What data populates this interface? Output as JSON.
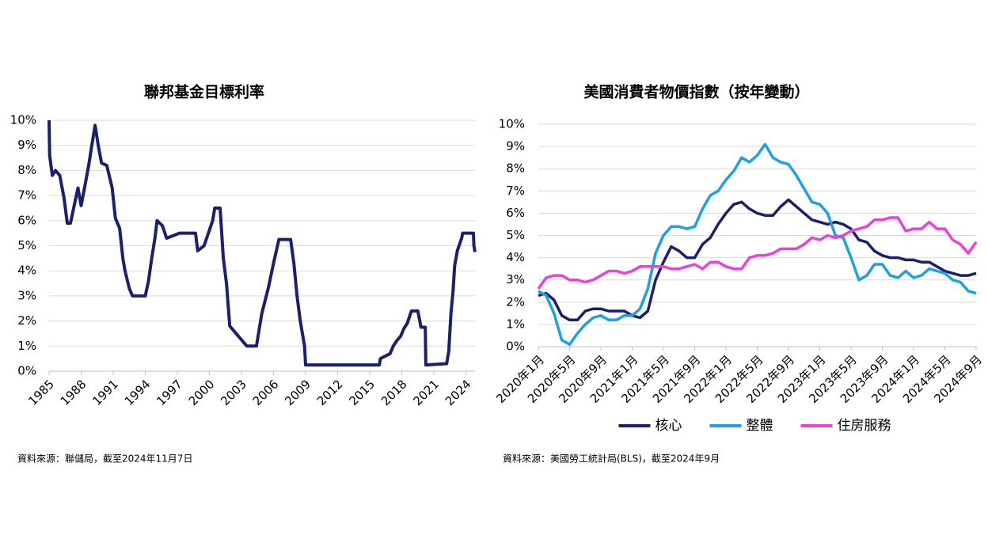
{
  "chart_data": [
    {
      "type": "line",
      "title": "聯邦基金目標利率",
      "source": "資料來源：聯儲局，截至2024年11月7日",
      "color": "#1a1f6e",
      "x": [
        1985.0,
        1985.05,
        1985.3,
        1985.6,
        1986.0,
        1986.4,
        1986.7,
        1987.0,
        1987.4,
        1987.7,
        1988.0,
        1988.4,
        1988.7,
        1989.0,
        1989.3,
        1989.6,
        1989.9,
        1990.4,
        1990.9,
        1991.2,
        1991.6,
        1991.9,
        1992.1,
        1992.5,
        1992.8,
        1994.0,
        1994.3,
        1994.6,
        1994.9,
        1995.1,
        1995.6,
        1996.0,
        1997.2,
        1998.7,
        1998.9,
        1999.5,
        1999.9,
        2000.3,
        2000.5,
        2001.0,
        2001.3,
        2001.6,
        2001.9,
        2002.9,
        2003.5,
        2004.4,
        2004.9,
        2005.5,
        2006.0,
        2006.5,
        2007.6,
        2007.9,
        2008.2,
        2008.5,
        2008.9,
        2009.0,
        2015.9,
        2016.0,
        2016.9,
        2017.2,
        2017.5,
        2017.9,
        2018.2,
        2018.5,
        2018.9,
        2019.5,
        2019.8,
        2020.2,
        2020.25,
        2022.2,
        2022.4,
        2022.6,
        2022.8,
        2022.95,
        2023.2,
        2023.6,
        2023.7,
        2024.7,
        2024.75,
        2024.85
      ],
      "values": [
        10.0,
        8.6,
        7.8,
        8.0,
        7.8,
        6.9,
        5.9,
        5.9,
        6.7,
        7.3,
        6.6,
        7.5,
        8.2,
        9.0,
        9.8,
        9.0,
        8.3,
        8.2,
        7.3,
        6.1,
        5.7,
        4.5,
        4.0,
        3.3,
        3.0,
        3.0,
        3.6,
        4.5,
        5.3,
        6.0,
        5.8,
        5.3,
        5.5,
        5.5,
        4.8,
        5.0,
        5.5,
        6.0,
        6.5,
        6.5,
        4.5,
        3.5,
        1.8,
        1.3,
        1.0,
        1.0,
        2.3,
        3.3,
        4.3,
        5.25,
        5.25,
        4.3,
        3.0,
        2.0,
        1.0,
        0.25,
        0.25,
        0.5,
        0.7,
        1.0,
        1.2,
        1.4,
        1.7,
        1.9,
        2.4,
        2.4,
        1.75,
        1.75,
        0.25,
        0.3,
        0.8,
        2.3,
        3.2,
        4.2,
        4.8,
        5.3,
        5.5,
        5.5,
        5.0,
        4.75
      ],
      "xlim": [
        1985,
        2024.85
      ],
      "xticks": [
        1985,
        1988,
        1991,
        1994,
        1997,
        2000,
        2003,
        2006,
        2009,
        2012,
        2015,
        2018,
        2021,
        2024
      ],
      "ylim": [
        0,
        10
      ],
      "yticks": [
        {
          "value": 0,
          "label": "0%"
        },
        {
          "value": 1,
          "label": "1%"
        },
        {
          "value": 2,
          "label": "2%"
        },
        {
          "value": 3,
          "label": "3%"
        },
        {
          "value": 4,
          "label": "4%"
        },
        {
          "value": 5,
          "label": "5%"
        },
        {
          "value": 6,
          "label": "6%"
        },
        {
          "value": 7,
          "label": "7%"
        },
        {
          "value": 8,
          "label": "8%"
        },
        {
          "value": 9,
          "label": "9%"
        },
        {
          "value": 10,
          "label": "10%"
        }
      ],
      "grid": true
    },
    {
      "type": "line",
      "title": "美國消費者物價指數（按年變動）",
      "source": "資料來源：美國勞工統計局(BLS)，截至2024年9月",
      "legend": "bottom",
      "categories": [
        "2020年1月",
        null,
        null,
        null,
        "2020年5月",
        null,
        null,
        null,
        "2020年9月",
        null,
        null,
        null,
        "2021年1月",
        null,
        null,
        null,
        "2021年5月",
        null,
        null,
        null,
        "2021年9月",
        null,
        null,
        null,
        "2022年1月",
        null,
        null,
        null,
        "2022年5月",
        null,
        null,
        null,
        "2022年9月",
        null,
        null,
        null,
        "2023年1月",
        null,
        null,
        null,
        "2023年5月",
        null,
        null,
        null,
        "2023年9月",
        null,
        null,
        null,
        "2024年1月",
        null,
        null,
        null,
        "2024年5月",
        null,
        null,
        null,
        "2024年9月"
      ],
      "series": [
        {
          "name": "核心",
          "color": "#1a1f6e",
          "values": [
            2.3,
            2.4,
            2.1,
            1.4,
            1.2,
            1.2,
            1.6,
            1.7,
            1.7,
            1.6,
            1.6,
            1.6,
            1.4,
            1.3,
            1.6,
            3.0,
            3.8,
            4.5,
            4.3,
            4.0,
            4.0,
            4.6,
            4.9,
            5.5,
            6.0,
            6.4,
            6.5,
            6.2,
            6.0,
            5.9,
            5.9,
            6.3,
            6.6,
            6.3,
            6.0,
            5.7,
            5.6,
            5.5,
            5.6,
            5.5,
            5.3,
            4.8,
            4.7,
            4.3,
            4.1,
            4.0,
            4.0,
            3.9,
            3.9,
            3.8,
            3.8,
            3.6,
            3.4,
            3.3,
            3.2,
            3.2,
            3.3
          ]
        },
        {
          "name": "整體",
          "color": "#1ea0e6",
          "values": [
            2.5,
            2.3,
            1.5,
            0.3,
            0.1,
            0.6,
            1.0,
            1.3,
            1.4,
            1.2,
            1.2,
            1.4,
            1.4,
            1.7,
            2.6,
            4.2,
            5.0,
            5.4,
            5.4,
            5.3,
            5.4,
            6.2,
            6.8,
            7.0,
            7.5,
            7.9,
            8.5,
            8.3,
            8.6,
            9.1,
            8.5,
            8.3,
            8.2,
            7.7,
            7.1,
            6.5,
            6.4,
            6.0,
            5.0,
            4.9,
            4.0,
            3.0,
            3.2,
            3.7,
            3.7,
            3.2,
            3.1,
            3.4,
            3.1,
            3.2,
            3.5,
            3.4,
            3.3,
            3.0,
            2.9,
            2.5,
            2.4
          ]
        },
        {
          "name": "住房服務",
          "color": "#ee3fd8",
          "values": [
            2.6,
            3.1,
            3.2,
            3.2,
            3.0,
            3.0,
            2.9,
            3.0,
            3.2,
            3.4,
            3.4,
            3.3,
            3.4,
            3.6,
            3.6,
            3.6,
            3.6,
            3.5,
            3.5,
            3.6,
            3.7,
            3.5,
            3.8,
            3.8,
            3.6,
            3.5,
            3.5,
            4.0,
            4.1,
            4.1,
            4.2,
            4.4,
            4.4,
            4.4,
            4.6,
            4.9,
            4.8,
            5.0,
            4.9,
            5.0,
            5.2,
            5.3,
            5.4,
            5.7,
            5.7,
            5.8,
            5.8,
            5.2,
            5.3,
            5.3,
            5.6,
            5.3,
            5.3,
            4.8,
            4.6,
            4.2,
            4.7
          ]
        }
      ],
      "ylim": [
        0,
        10
      ],
      "yticks": [
        {
          "value": 0,
          "label": "0%"
        },
        {
          "value": 1,
          "label": "1%"
        },
        {
          "value": 2,
          "label": "2%"
        },
        {
          "value": 3,
          "label": "3%"
        },
        {
          "value": 4,
          "label": "4%"
        },
        {
          "value": 5,
          "label": "5%"
        },
        {
          "value": 6,
          "label": "6%"
        },
        {
          "value": 7,
          "label": "7%"
        },
        {
          "value": 8,
          "label": "8%"
        },
        {
          "value": 9,
          "label": "9%"
        },
        {
          "value": 10,
          "label": "10%"
        }
      ],
      "grid": true
    }
  ]
}
